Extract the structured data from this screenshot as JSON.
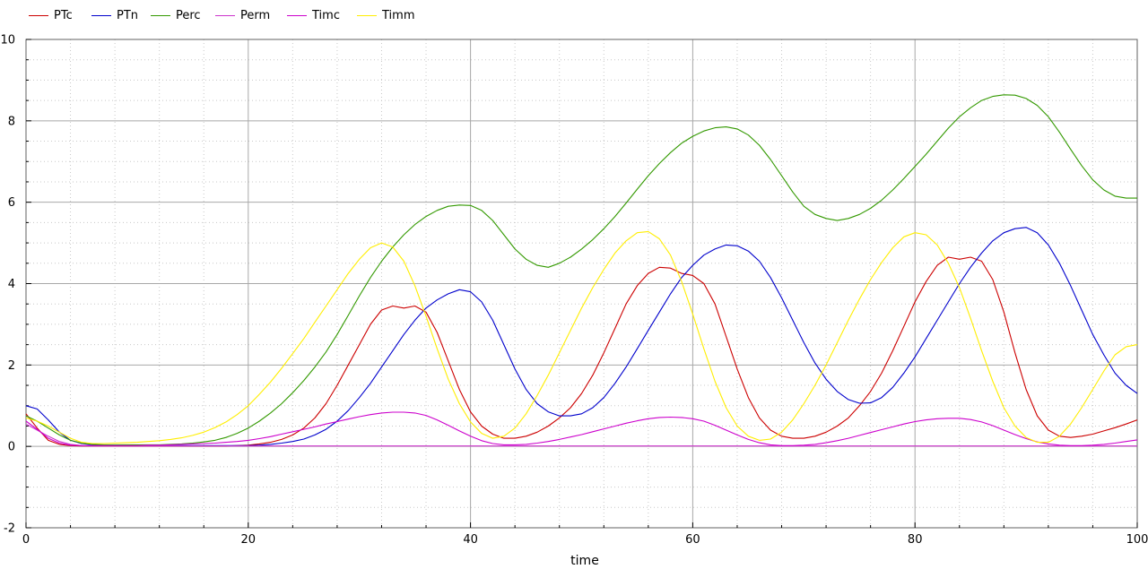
{
  "chart_data": {
    "type": "line",
    "xlabel": "time",
    "ylabel": "",
    "xlim": [
      0,
      100
    ],
    "ylim": [
      -2,
      10
    ],
    "x_ticks": [
      0,
      20,
      40,
      60,
      80,
      100
    ],
    "y_ticks": [
      -2,
      0,
      2,
      4,
      6,
      8,
      10
    ],
    "grid": true,
    "legend_position": "top-left",
    "x": [
      0,
      1,
      2,
      3,
      4,
      5,
      6,
      7,
      8,
      9,
      10,
      11,
      12,
      13,
      14,
      15,
      16,
      17,
      18,
      19,
      20,
      21,
      22,
      23,
      24,
      25,
      26,
      27,
      28,
      29,
      30,
      31,
      32,
      33,
      34,
      35,
      36,
      37,
      38,
      39,
      40,
      41,
      42,
      43,
      44,
      45,
      46,
      47,
      48,
      49,
      50,
      51,
      52,
      53,
      54,
      55,
      56,
      57,
      58,
      59,
      60,
      61,
      62,
      63,
      64,
      65,
      66,
      67,
      68,
      69,
      70,
      71,
      72,
      73,
      74,
      75,
      76,
      77,
      78,
      79,
      80,
      81,
      82,
      83,
      84,
      85,
      86,
      87,
      88,
      89,
      90,
      91,
      92,
      93,
      94,
      95,
      96,
      97,
      98,
      99,
      100
    ],
    "series": [
      {
        "name": "PTc",
        "color": "#cc0000",
        "values": [
          0.8,
          0.45,
          0.15,
          0.05,
          0.02,
          0.01,
          0.01,
          0.01,
          0.01,
          0.01,
          0.01,
          0.01,
          0.01,
          0.01,
          0.01,
          0.01,
          0.01,
          0.01,
          0.01,
          0.02,
          0.03,
          0.06,
          0.1,
          0.17,
          0.28,
          0.45,
          0.7,
          1.05,
          1.5,
          2.0,
          2.5,
          3.0,
          3.35,
          3.45,
          3.4,
          3.45,
          3.3,
          2.8,
          2.1,
          1.4,
          0.85,
          0.5,
          0.3,
          0.2,
          0.2,
          0.25,
          0.35,
          0.5,
          0.7,
          0.95,
          1.3,
          1.75,
          2.3,
          2.9,
          3.5,
          3.95,
          4.25,
          4.4,
          4.38,
          4.25,
          4.2,
          4.0,
          3.5,
          2.7,
          1.9,
          1.2,
          0.7,
          0.4,
          0.25,
          0.2,
          0.2,
          0.25,
          0.35,
          0.5,
          0.7,
          1.0,
          1.35,
          1.8,
          2.35,
          2.95,
          3.55,
          4.05,
          4.45,
          4.65,
          4.6,
          4.65,
          4.55,
          4.1,
          3.3,
          2.3,
          1.4,
          0.75,
          0.4,
          0.25,
          0.22,
          0.25,
          0.3,
          0.38,
          0.46,
          0.55,
          0.65
        ]
      },
      {
        "name": "PTn",
        "color": "#0000cc",
        "values": [
          1.0,
          0.92,
          0.65,
          0.35,
          0.15,
          0.07,
          0.04,
          0.03,
          0.02,
          0.02,
          0.02,
          0.02,
          0.02,
          0.02,
          0.02,
          0.02,
          0.02,
          0.02,
          0.02,
          0.02,
          0.02,
          0.03,
          0.05,
          0.08,
          0.12,
          0.18,
          0.28,
          0.42,
          0.62,
          0.88,
          1.2,
          1.55,
          1.95,
          2.35,
          2.75,
          3.1,
          3.4,
          3.6,
          3.75,
          3.85,
          3.8,
          3.55,
          3.1,
          2.5,
          1.9,
          1.4,
          1.05,
          0.85,
          0.75,
          0.75,
          0.8,
          0.95,
          1.2,
          1.55,
          1.95,
          2.4,
          2.85,
          3.3,
          3.75,
          4.15,
          4.45,
          4.7,
          4.85,
          4.95,
          4.93,
          4.8,
          4.55,
          4.15,
          3.65,
          3.1,
          2.55,
          2.05,
          1.65,
          1.35,
          1.15,
          1.06,
          1.07,
          1.2,
          1.45,
          1.8,
          2.2,
          2.65,
          3.1,
          3.55,
          4.0,
          4.4,
          4.75,
          5.05,
          5.25,
          5.35,
          5.38,
          5.25,
          4.95,
          4.5,
          3.95,
          3.35,
          2.75,
          2.25,
          1.8,
          1.5,
          1.3
        ]
      },
      {
        "name": "Perc",
        "color": "#339900",
        "values": [
          0.75,
          0.62,
          0.45,
          0.28,
          0.15,
          0.08,
          0.05,
          0.04,
          0.04,
          0.04,
          0.04,
          0.04,
          0.04,
          0.05,
          0.06,
          0.08,
          0.11,
          0.15,
          0.22,
          0.32,
          0.45,
          0.62,
          0.82,
          1.05,
          1.32,
          1.62,
          1.95,
          2.32,
          2.75,
          3.22,
          3.7,
          4.15,
          4.55,
          4.9,
          5.2,
          5.45,
          5.65,
          5.8,
          5.9,
          5.93,
          5.92,
          5.8,
          5.55,
          5.2,
          4.85,
          4.6,
          4.45,
          4.4,
          4.5,
          4.65,
          4.85,
          5.08,
          5.35,
          5.65,
          5.98,
          6.32,
          6.65,
          6.95,
          7.22,
          7.45,
          7.62,
          7.75,
          7.83,
          7.85,
          7.8,
          7.65,
          7.4,
          7.05,
          6.65,
          6.25,
          5.9,
          5.7,
          5.6,
          5.55,
          5.6,
          5.7,
          5.85,
          6.05,
          6.3,
          6.58,
          6.88,
          7.18,
          7.5,
          7.82,
          8.1,
          8.32,
          8.5,
          8.6,
          8.64,
          8.63,
          8.55,
          8.38,
          8.1,
          7.72,
          7.3,
          6.9,
          6.55,
          6.3,
          6.15,
          6.1,
          6.1
        ]
      },
      {
        "name": "Perm",
        "color": "#cc33cc",
        "values": [
          0.55,
          0.4,
          0.25,
          0.12,
          0.05,
          0.02,
          0.01,
          0.01,
          0.01,
          0.01,
          0.01,
          0.01,
          0.01,
          0.01,
          0.01,
          0.01,
          0.01,
          0.01,
          0.01,
          0.01,
          0.01,
          0.01,
          0.01,
          0.01,
          0.01,
          0.01,
          0.01,
          0.01,
          0.01,
          0.01,
          0.01,
          0.01,
          0.01,
          0.01,
          0.01,
          0.01,
          0.01,
          0.01,
          0.01,
          0.01,
          0.01,
          0.01,
          0.01,
          0.01,
          0.01,
          0.01,
          0.01,
          0.01,
          0.01,
          0.01,
          0.01,
          0.01,
          0.01,
          0.01,
          0.01,
          0.01,
          0.01,
          0.01,
          0.01,
          0.01,
          0.01,
          0.01,
          0.01,
          0.01,
          0.01,
          0.01,
          0.01,
          0.01,
          0.01,
          0.01,
          0.01,
          0.01,
          0.01,
          0.01,
          0.01,
          0.01,
          0.01,
          0.01,
          0.01,
          0.01,
          0.01,
          0.01,
          0.01,
          0.01,
          0.01,
          0.01,
          0.01,
          0.01,
          0.01,
          0.01,
          0.01,
          0.01,
          0.01,
          0.01,
          0.01,
          0.01,
          0.01,
          0.01,
          0.01,
          0.01,
          0.01
        ]
      },
      {
        "name": "Timc",
        "color": "#cc00cc",
        "values": [
          0.62,
          0.42,
          0.2,
          0.08,
          0.03,
          0.02,
          0.02,
          0.02,
          0.02,
          0.02,
          0.02,
          0.03,
          0.03,
          0.04,
          0.05,
          0.06,
          0.07,
          0.08,
          0.1,
          0.12,
          0.15,
          0.19,
          0.24,
          0.3,
          0.36,
          0.42,
          0.48,
          0.55,
          0.61,
          0.67,
          0.73,
          0.78,
          0.82,
          0.84,
          0.84,
          0.82,
          0.76,
          0.65,
          0.52,
          0.38,
          0.25,
          0.14,
          0.07,
          0.04,
          0.04,
          0.05,
          0.08,
          0.12,
          0.17,
          0.23,
          0.29,
          0.36,
          0.43,
          0.5,
          0.57,
          0.63,
          0.68,
          0.71,
          0.72,
          0.71,
          0.68,
          0.62,
          0.52,
          0.4,
          0.28,
          0.17,
          0.09,
          0.04,
          0.02,
          0.02,
          0.03,
          0.05,
          0.09,
          0.14,
          0.2,
          0.27,
          0.34,
          0.41,
          0.48,
          0.55,
          0.61,
          0.65,
          0.68,
          0.69,
          0.69,
          0.66,
          0.6,
          0.51,
          0.4,
          0.29,
          0.19,
          0.11,
          0.06,
          0.03,
          0.02,
          0.02,
          0.03,
          0.05,
          0.08,
          0.12,
          0.16
        ]
      },
      {
        "name": "Timm",
        "color": "#ffee00",
        "values": [
          0.7,
          0.62,
          0.5,
          0.35,
          0.2,
          0.1,
          0.07,
          0.07,
          0.08,
          0.09,
          0.1,
          0.12,
          0.14,
          0.17,
          0.21,
          0.27,
          0.35,
          0.46,
          0.6,
          0.78,
          1.0,
          1.28,
          1.58,
          1.92,
          2.28,
          2.65,
          3.05,
          3.45,
          3.85,
          4.25,
          4.6,
          4.88,
          5.0,
          4.9,
          4.55,
          3.95,
          3.2,
          2.4,
          1.65,
          1.05,
          0.6,
          0.32,
          0.2,
          0.25,
          0.45,
          0.8,
          1.25,
          1.75,
          2.3,
          2.85,
          3.4,
          3.9,
          4.35,
          4.75,
          5.05,
          5.25,
          5.28,
          5.1,
          4.7,
          4.05,
          3.25,
          2.4,
          1.6,
          0.95,
          0.5,
          0.25,
          0.15,
          0.18,
          0.35,
          0.65,
          1.05,
          1.5,
          2.0,
          2.55,
          3.1,
          3.62,
          4.1,
          4.52,
          4.88,
          5.15,
          5.25,
          5.2,
          4.95,
          4.5,
          3.9,
          3.15,
          2.35,
          1.6,
          0.95,
          0.5,
          0.22,
          0.1,
          0.1,
          0.25,
          0.55,
          0.95,
          1.4,
          1.85,
          2.25,
          2.45,
          2.5
        ]
      }
    ]
  }
}
